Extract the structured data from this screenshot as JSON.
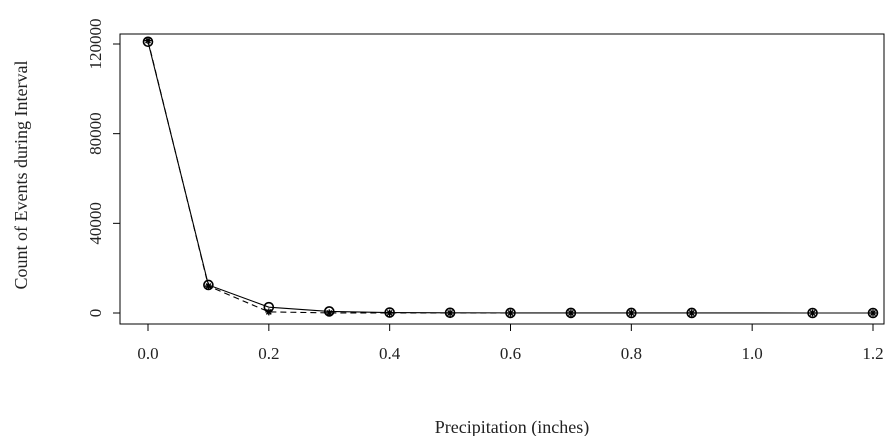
{
  "chart_data": {
    "type": "line",
    "title": "",
    "xlabel": "Precipitation (inches)",
    "ylabel": "Count of Events during Interval",
    "xlim": [
      0.0,
      1.2
    ],
    "ylim": [
      0,
      120000
    ],
    "xticks": [
      "0.0",
      "0.2",
      "0.4",
      "0.6",
      "0.8",
      "1.0",
      "1.2"
    ],
    "yticks": [
      "0",
      "40000",
      "80000",
      "120000"
    ],
    "grid": false,
    "legend": "none",
    "series": [
      {
        "style": "solid",
        "marker": "open-circle",
        "x": [
          0.0,
          0.1,
          0.2,
          0.3,
          0.4,
          0.5,
          0.6,
          0.7,
          0.8,
          0.9,
          1.1,
          1.2
        ],
        "y": [
          121000,
          12500,
          2600,
          700,
          200,
          100,
          50,
          30,
          20,
          10,
          5,
          5
        ]
      },
      {
        "style": "dashed",
        "marker": "asterisk",
        "x": [
          0.0,
          0.1,
          0.2,
          0.3,
          0.4,
          0.5,
          0.6,
          0.7,
          0.8,
          0.9,
          1.1,
          1.2
        ],
        "y": [
          121500,
          12000,
          500,
          50,
          5,
          1,
          0,
          0,
          0,
          0,
          0,
          0
        ]
      }
    ],
    "colors": {
      "line": "#000000",
      "axis": "#000000"
    }
  }
}
